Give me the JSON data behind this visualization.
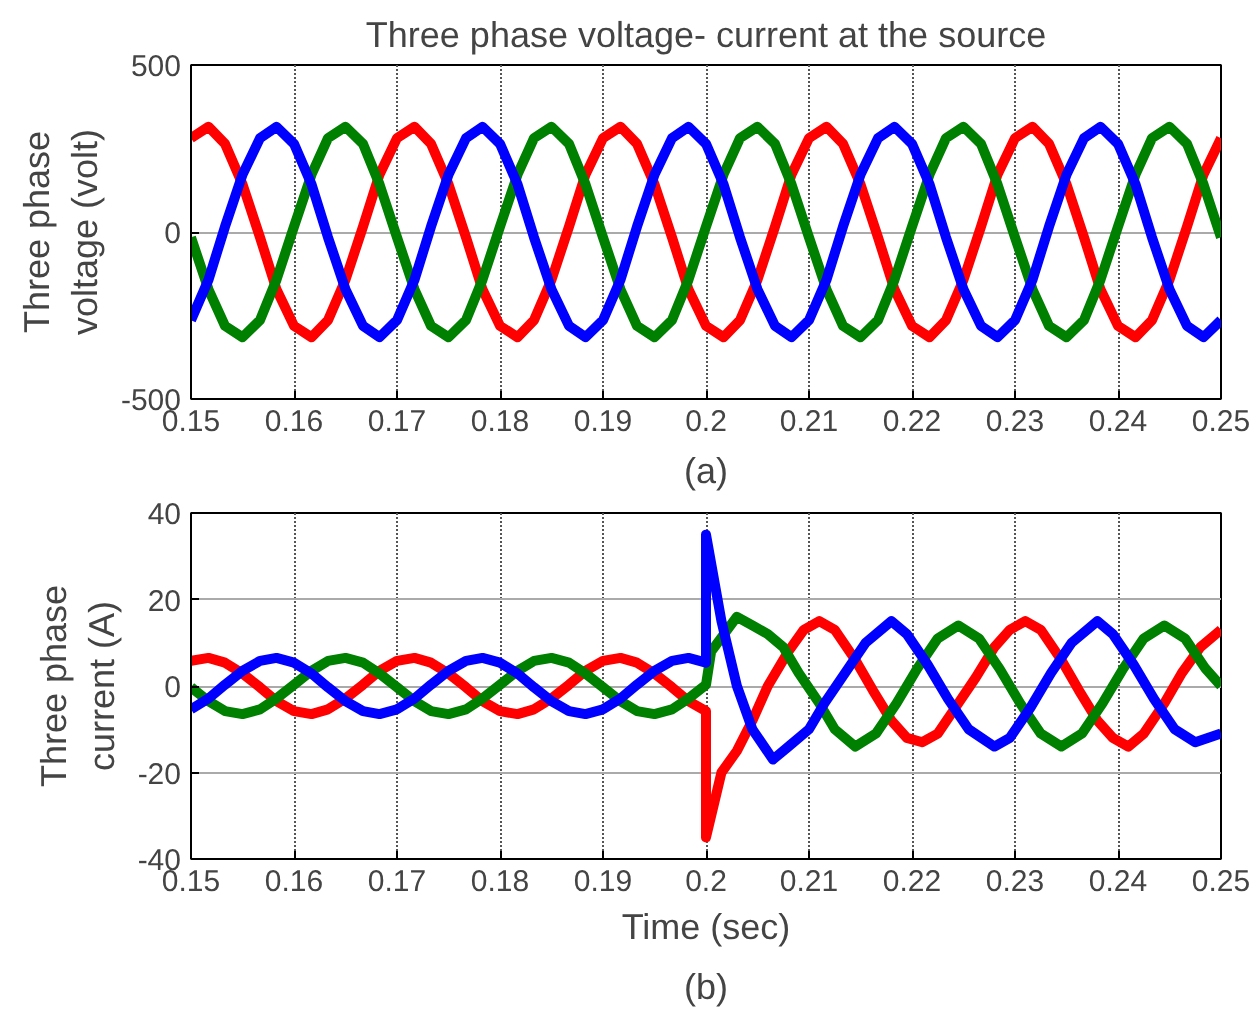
{
  "chart_data": [
    {
      "type": "line",
      "title": "Three phase voltage- current at the source",
      "ylabel": "Three phase voltage (volt)",
      "annotations": [
        "(a)"
      ],
      "x": [
        0.15,
        0.1517,
        0.1533,
        0.155,
        0.1567,
        0.1583,
        0.16,
        0.1617,
        0.1633,
        0.165,
        0.1667,
        0.1683,
        0.17,
        0.1717,
        0.1733,
        0.175,
        0.1767,
        0.1783,
        0.18,
        0.1817,
        0.1833,
        0.185,
        0.1867,
        0.1883,
        0.19,
        0.1917,
        0.1933,
        0.195,
        0.1967,
        0.1983,
        0.2,
        0.2017,
        0.2033,
        0.205,
        0.2067,
        0.2083,
        0.21,
        0.2117,
        0.2133,
        0.215,
        0.2167,
        0.2183,
        0.22,
        0.2217,
        0.2233,
        0.225,
        0.2267,
        0.2283,
        0.23,
        0.2317,
        0.2333,
        0.235,
        0.2367,
        0.2383,
        0.24,
        0.2417,
        0.2433,
        0.245,
        0.2467,
        0.2483,
        0.25
      ],
      "series": [
        {
          "color": "#ff0000",
          "values": [
            281,
            315,
            264,
            143,
            -16,
            -172,
            -281,
            -315,
            -264,
            -143,
            16,
            172,
            281,
            315,
            264,
            143,
            -16,
            -172,
            -281,
            -315,
            -264,
            -143,
            16,
            172,
            281,
            315,
            264,
            143,
            -16,
            -172,
            -281,
            -315,
            -264,
            -143,
            16,
            172,
            281,
            315,
            264,
            143,
            -16,
            -172,
            -281,
            -315,
            -264,
            -143,
            16,
            172,
            281,
            315,
            264,
            143,
            -16,
            -172,
            -281,
            -315,
            -264,
            -143,
            16,
            172,
            281
          ]
        },
        {
          "color": "#008000",
          "values": [
            -16,
            -172,
            -281,
            -315,
            -264,
            -143,
            16,
            172,
            281,
            315,
            264,
            143,
            -16,
            -172,
            -281,
            -315,
            -264,
            -143,
            16,
            172,
            281,
            315,
            264,
            143,
            -16,
            -172,
            -281,
            -315,
            -264,
            -143,
            16,
            172,
            281,
            315,
            264,
            143,
            -16,
            -172,
            -281,
            -315,
            -264,
            -143,
            16,
            172,
            281,
            315,
            264,
            143,
            -16,
            -172,
            -281,
            -315,
            -264,
            -143,
            16,
            172,
            281,
            315,
            264,
            143,
            -16
          ]
        },
        {
          "color": "#0000ff",
          "values": [
            -264,
            -143,
            16,
            172,
            281,
            315,
            264,
            143,
            -16,
            -172,
            -281,
            -315,
            -264,
            -143,
            16,
            172,
            281,
            315,
            264,
            143,
            -16,
            -172,
            -281,
            -315,
            -264,
            -143,
            16,
            172,
            281,
            315,
            264,
            143,
            -16,
            -172,
            -281,
            -315,
            -264,
            -143,
            16,
            172,
            281,
            315,
            264,
            143,
            -16,
            -172,
            -281,
            -315,
            -264,
            -143,
            16,
            172,
            281,
            315,
            264,
            143,
            -16,
            -172,
            -281,
            -315,
            -264
          ]
        }
      ],
      "xlim": [
        0.15,
        0.25
      ],
      "xticks": [
        0.15,
        0.16,
        0.17,
        0.18,
        0.19,
        {
          "value": 0.2,
          "label": "0.2"
        },
        0.21,
        0.22,
        0.23,
        0.24,
        0.25
      ],
      "ylim": [
        -500,
        500
      ],
      "yticks": [
        -500,
        0,
        500
      ],
      "grid": true,
      "marker": "none",
      "line_style": "solid"
    },
    {
      "type": "line",
      "xlabel": "Time (sec)",
      "ylabel": "Three phase current (A)",
      "annotations": [
        "(b)"
      ],
      "series": [
        {
          "color": "#ff0000",
          "x": [
            0.15,
            0.1517,
            0.1533,
            0.155,
            0.1567,
            0.1583,
            0.16,
            0.1617,
            0.1633,
            0.165,
            0.1667,
            0.1683,
            0.17,
            0.1717,
            0.1733,
            0.175,
            0.1767,
            0.1783,
            0.18,
            0.1817,
            0.1833,
            0.185,
            0.1867,
            0.1883,
            0.19,
            0.1917,
            0.1933,
            0.195,
            0.1967,
            0.1983,
            0.2,
            0.2,
            0.2015,
            0.203,
            0.2045,
            0.206,
            0.208,
            0.2095,
            0.211,
            0.2125,
            0.2145,
            0.2162,
            0.218,
            0.2195,
            0.221,
            0.2225,
            0.2245,
            0.2262,
            0.228,
            0.2295,
            0.231,
            0.2325,
            0.2345,
            0.2362,
            0.238,
            0.2395,
            0.241,
            0.2425,
            0.2445,
            0.2462,
            0.248,
            0.25
          ],
          "values": [
            5.8,
            6.5,
            5.4,
            2.9,
            -0.3,
            -3.5,
            -5.8,
            -6.5,
            -5.4,
            -2.9,
            0.3,
            3.5,
            5.8,
            6.5,
            5.4,
            2.9,
            -0.3,
            -3.5,
            -5.8,
            -6.5,
            -5.4,
            -2.9,
            0.3,
            3.5,
            5.8,
            6.5,
            5.4,
            2.9,
            -0.3,
            -3.5,
            -5.8,
            -35,
            -20,
            -15,
            -8,
            0,
            8,
            13,
            15,
            13,
            6,
            -1,
            -8,
            -12,
            -13,
            -11,
            -4,
            2,
            9,
            13,
            15,
            13,
            6,
            -1,
            -8,
            -12,
            -14,
            -11,
            -4,
            3,
            9,
            13
          ]
        },
        {
          "color": "#008000",
          "x": [
            0.15,
            0.1517,
            0.1533,
            0.155,
            0.1567,
            0.1583,
            0.16,
            0.1617,
            0.1633,
            0.165,
            0.1667,
            0.1683,
            0.17,
            0.1717,
            0.1733,
            0.175,
            0.1767,
            0.1783,
            0.18,
            0.1817,
            0.1833,
            0.185,
            0.1867,
            0.1883,
            0.19,
            0.1917,
            0.1933,
            0.195,
            0.1967,
            0.1983,
            0.2,
            0.2005,
            0.203,
            0.2045,
            0.206,
            0.2075,
            0.209,
            0.211,
            0.2125,
            0.2145,
            0.2165,
            0.2185,
            0.2205,
            0.2225,
            0.2245,
            0.2265,
            0.2285,
            0.2305,
            0.2325,
            0.2345,
            0.2365,
            0.2385,
            0.2405,
            0.2425,
            0.2445,
            0.2465,
            0.2485,
            0.25
          ],
          "values": [
            -0.3,
            -3.5,
            -5.8,
            -6.5,
            -5.4,
            -2.9,
            0.3,
            3.5,
            5.8,
            6.5,
            5.4,
            2.9,
            -0.3,
            -3.5,
            -5.8,
            -6.5,
            -5.4,
            -2.9,
            0.3,
            3.5,
            5.8,
            6.5,
            5.4,
            2.9,
            -0.3,
            -3.5,
            -5.8,
            -6.5,
            -5.4,
            -2.9,
            0.3,
            8,
            16,
            14,
            12,
            9,
            3,
            -4,
            -10,
            -14,
            -11,
            -4,
            4,
            11,
            14,
            11,
            4,
            -4,
            -11,
            -14,
            -11,
            -4,
            4,
            11,
            14,
            11,
            4,
            0
          ]
        },
        {
          "color": "#0000ff",
          "x": [
            0.15,
            0.1517,
            0.1533,
            0.155,
            0.1567,
            0.1583,
            0.16,
            0.1617,
            0.1633,
            0.165,
            0.1667,
            0.1683,
            0.17,
            0.1717,
            0.1733,
            0.175,
            0.1767,
            0.1783,
            0.18,
            0.1817,
            0.1833,
            0.185,
            0.1867,
            0.1883,
            0.19,
            0.1917,
            0.1933,
            0.195,
            0.1967,
            0.1983,
            0.2,
            0.2,
            0.2015,
            0.203,
            0.2045,
            0.2065,
            0.208,
            0.21,
            0.2115,
            0.2135,
            0.2155,
            0.218,
            0.2195,
            0.2215,
            0.2235,
            0.2255,
            0.228,
            0.2295,
            0.2315,
            0.2335,
            0.2355,
            0.238,
            0.2395,
            0.2415,
            0.2435,
            0.2455,
            0.2475,
            0.25
          ],
          "values": [
            -5.4,
            -2.9,
            0.3,
            3.5,
            5.8,
            6.5,
            5.4,
            2.9,
            -0.3,
            -3.5,
            -5.8,
            -6.5,
            -5.4,
            -2.9,
            0.3,
            3.5,
            5.8,
            6.5,
            5.4,
            2.9,
            -0.3,
            -3.5,
            -5.8,
            -6.5,
            -5.4,
            -2.9,
            0.3,
            3.5,
            5.8,
            6.5,
            5.4,
            35,
            15,
            0,
            -10,
            -17,
            -14,
            -10,
            -4,
            3,
            10,
            15,
            12,
            5,
            -3,
            -10,
            -14,
            -12,
            -5,
            3,
            10,
            15,
            12,
            5,
            -3,
            -10,
            -13,
            -11
          ]
        }
      ],
      "xlim": [
        0.15,
        0.25
      ],
      "xticks": [
        0.15,
        0.16,
        0.17,
        0.18,
        0.19,
        {
          "value": 0.2,
          "label": "0.2"
        },
        0.21,
        0.22,
        0.23,
        0.24,
        0.25
      ],
      "ylim": [
        -40,
        40
      ],
      "yticks": [
        -40,
        -20,
        0,
        20,
        40
      ],
      "grid": true,
      "marker": "none",
      "line_style": "solid"
    }
  ]
}
